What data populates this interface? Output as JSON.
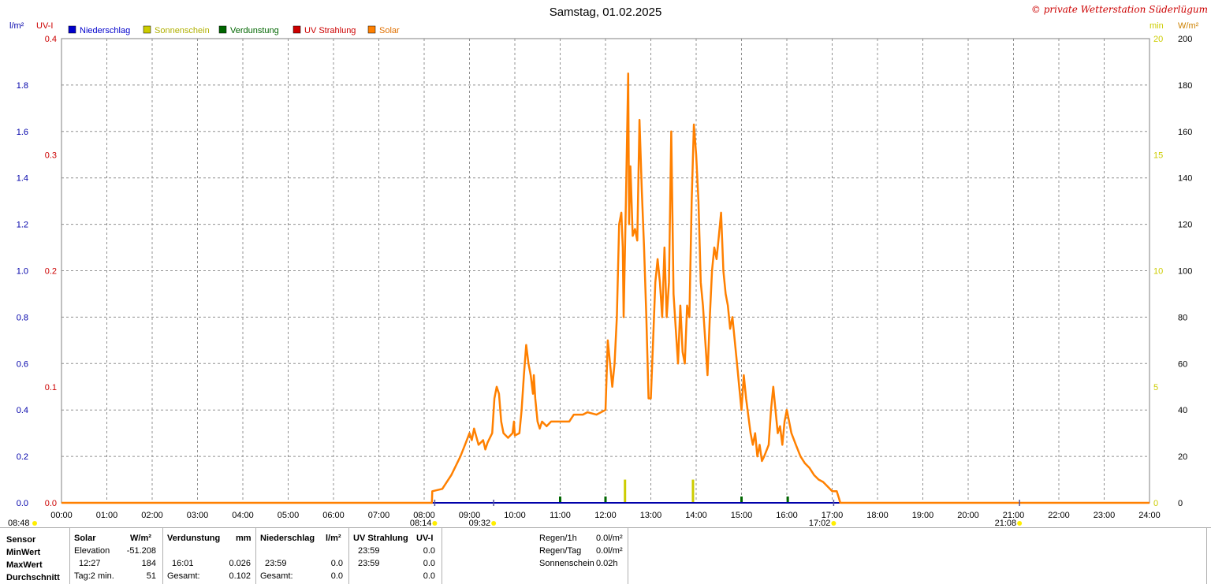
{
  "title": "Samstag, 01.02.2025",
  "brand": "© private Wetterstation Süderlügum",
  "colors": {
    "niederschlag": "#0000cc",
    "sonnenschein": "#cccc00",
    "verdunstung": "#006600",
    "uv": "#cc0000",
    "solar": "#ff8000"
  },
  "axes": {
    "left1_unit": "l/m²",
    "left2_unit": "UV-I",
    "right1_unit": "min",
    "right2_unit": "W/m²",
    "left1_ticks": [
      "0.0",
      "0.2",
      "0.4",
      "0.6",
      "0.8",
      "1.0",
      "1.2",
      "1.4",
      "1.6",
      "1.8"
    ],
    "left2_ticks": [
      "0.0",
      "0.1",
      "0.2",
      "0.3",
      "0.4"
    ],
    "right1_ticks": [
      "0",
      "5",
      "10",
      "15",
      "20"
    ],
    "right2_ticks": [
      "0",
      "20",
      "40",
      "60",
      "80",
      "100",
      "120",
      "140",
      "160",
      "180",
      "200"
    ],
    "x_ticks": [
      "00:00",
      "01:00",
      "02:00",
      "03:00",
      "04:00",
      "05:00",
      "06:00",
      "07:00",
      "08:00",
      "09:00",
      "10:00",
      "11:00",
      "12:00",
      "13:00",
      "14:00",
      "15:00",
      "16:00",
      "17:00",
      "18:00",
      "19:00",
      "20:00",
      "21:00",
      "22:00",
      "23:00",
      "24:00"
    ]
  },
  "legend": [
    {
      "label": "Niederschlag",
      "color": "#0000cc"
    },
    {
      "label": "Sonnenschein",
      "color": "#cccc00"
    },
    {
      "label": "Verdunstung",
      "color": "#006600"
    },
    {
      "label": "UV Strahlung",
      "color": "#cc0000"
    },
    {
      "label": "Solar",
      "color": "#ff8000"
    }
  ],
  "events": [
    {
      "label": "08:48",
      "time": 8.8,
      "row": "left"
    },
    {
      "label": "08:14",
      "time": 8.233,
      "row": "top"
    },
    {
      "label": "09:32",
      "time": 9.533,
      "row": "top"
    },
    {
      "label": "17:02",
      "time": 17.033,
      "row": "top"
    },
    {
      "label": "21:08",
      "time": 21.133,
      "row": "top"
    }
  ],
  "chart_data": {
    "type": "line",
    "title": "Samstag, 01.02.2025",
    "xlim": [
      0,
      24
    ],
    "ylim_solar": [
      0,
      200
    ],
    "ylim_rain": [
      0,
      2.0
    ],
    "ylim_uv": [
      0,
      0.4
    ],
    "ylim_sun_min": [
      0,
      20
    ],
    "grid": true,
    "legend_position": "top-left",
    "series": [
      {
        "name": "Solar",
        "unit": "W/m²",
        "color": "#ff8000",
        "points": [
          [
            0,
            0
          ],
          [
            8.17,
            0
          ],
          [
            8.18,
            5
          ],
          [
            8.4,
            6
          ],
          [
            8.6,
            12
          ],
          [
            8.8,
            20
          ],
          [
            8.9,
            25
          ],
          [
            9.0,
            30
          ],
          [
            9.05,
            27
          ],
          [
            9.1,
            32
          ],
          [
            9.2,
            25
          ],
          [
            9.3,
            27
          ],
          [
            9.35,
            23
          ],
          [
            9.4,
            26
          ],
          [
            9.5,
            30
          ],
          [
            9.55,
            45
          ],
          [
            9.6,
            50
          ],
          [
            9.65,
            47
          ],
          [
            9.7,
            35
          ],
          [
            9.75,
            30
          ],
          [
            9.85,
            28
          ],
          [
            9.95,
            30
          ],
          [
            9.98,
            35
          ],
          [
            10.0,
            29
          ],
          [
            10.1,
            30
          ],
          [
            10.15,
            40
          ],
          [
            10.2,
            55
          ],
          [
            10.25,
            68
          ],
          [
            10.3,
            60
          ],
          [
            10.35,
            55
          ],
          [
            10.4,
            47
          ],
          [
            10.42,
            55
          ],
          [
            10.45,
            45
          ],
          [
            10.5,
            35
          ],
          [
            10.55,
            32
          ],
          [
            10.6,
            35
          ],
          [
            10.7,
            33
          ],
          [
            10.8,
            35
          ],
          [
            11.0,
            35
          ],
          [
            11.2,
            35
          ],
          [
            11.3,
            38
          ],
          [
            11.5,
            38
          ],
          [
            11.6,
            39
          ],
          [
            11.8,
            38
          ],
          [
            12.0,
            40
          ],
          [
            12.05,
            70
          ],
          [
            12.1,
            60
          ],
          [
            12.15,
            50
          ],
          [
            12.2,
            60
          ],
          [
            12.25,
            80
          ],
          [
            12.3,
            120
          ],
          [
            12.35,
            125
          ],
          [
            12.38,
            110
          ],
          [
            12.4,
            80
          ],
          [
            12.45,
            130
          ],
          [
            12.5,
            185
          ],
          [
            12.52,
            120
          ],
          [
            12.55,
            145
          ],
          [
            12.6,
            115
          ],
          [
            12.65,
            118
          ],
          [
            12.7,
            113
          ],
          [
            12.75,
            165
          ],
          [
            12.8,
            135
          ],
          [
            12.85,
            110
          ],
          [
            12.9,
            80
          ],
          [
            12.95,
            45
          ],
          [
            13.0,
            45
          ],
          [
            13.05,
            70
          ],
          [
            13.1,
            95
          ],
          [
            13.15,
            105
          ],
          [
            13.2,
            95
          ],
          [
            13.25,
            80
          ],
          [
            13.3,
            110
          ],
          [
            13.35,
            80
          ],
          [
            13.4,
            95
          ],
          [
            13.45,
            160
          ],
          [
            13.5,
            90
          ],
          [
            13.55,
            75
          ],
          [
            13.6,
            60
          ],
          [
            13.65,
            85
          ],
          [
            13.7,
            65
          ],
          [
            13.75,
            60
          ],
          [
            13.8,
            85
          ],
          [
            13.85,
            80
          ],
          [
            13.9,
            130
          ],
          [
            13.95,
            163
          ],
          [
            14.0,
            150
          ],
          [
            14.05,
            130
          ],
          [
            14.1,
            95
          ],
          [
            14.15,
            85
          ],
          [
            14.2,
            70
          ],
          [
            14.25,
            55
          ],
          [
            14.3,
            80
          ],
          [
            14.35,
            100
          ],
          [
            14.4,
            110
          ],
          [
            14.45,
            105
          ],
          [
            14.5,
            115
          ],
          [
            14.55,
            125
          ],
          [
            14.6,
            100
          ],
          [
            14.65,
            90
          ],
          [
            14.7,
            85
          ],
          [
            14.75,
            75
          ],
          [
            14.8,
            80
          ],
          [
            14.85,
            70
          ],
          [
            14.9,
            60
          ],
          [
            14.95,
            50
          ],
          [
            15.0,
            40
          ],
          [
            15.05,
            55
          ],
          [
            15.1,
            45
          ],
          [
            15.2,
            30
          ],
          [
            15.25,
            25
          ],
          [
            15.3,
            30
          ],
          [
            15.35,
            20
          ],
          [
            15.4,
            25
          ],
          [
            15.45,
            18
          ],
          [
            15.5,
            20
          ],
          [
            15.6,
            25
          ],
          [
            15.65,
            40
          ],
          [
            15.7,
            50
          ],
          [
            15.75,
            40
          ],
          [
            15.8,
            30
          ],
          [
            15.85,
            33
          ],
          [
            15.9,
            25
          ],
          [
            15.95,
            35
          ],
          [
            16.0,
            40
          ],
          [
            16.05,
            35
          ],
          [
            16.1,
            30
          ],
          [
            16.2,
            25
          ],
          [
            16.3,
            20
          ],
          [
            16.4,
            17
          ],
          [
            16.5,
            15
          ],
          [
            16.6,
            12
          ],
          [
            16.7,
            10
          ],
          [
            16.8,
            9
          ],
          [
            16.9,
            7
          ],
          [
            17.0,
            5
          ],
          [
            17.1,
            5
          ],
          [
            17.15,
            2
          ],
          [
            17.18,
            0
          ],
          [
            24,
            0
          ]
        ]
      },
      {
        "name": "Sonnenschein",
        "unit": "min",
        "color": "#cccc00",
        "bars": [
          [
            12.43,
            1.0
          ],
          [
            13.93,
            1.0
          ]
        ]
      },
      {
        "name": "Verdunstung",
        "unit": "mm",
        "color": "#006600",
        "bars": [
          [
            11.0,
            0.003
          ],
          [
            12.0,
            0.003
          ],
          [
            15.0,
            0.002
          ],
          [
            16.02,
            0.003
          ]
        ]
      },
      {
        "name": "Niederschlag",
        "unit": "l/m²",
        "color": "#0000cc",
        "values_all_zero": true
      },
      {
        "name": "UV Strahlung",
        "unit": "UV-I",
        "color": "#cc0000",
        "values_all_zero": true
      }
    ]
  },
  "stats": {
    "row_labels": [
      "Sensor",
      "MinWert",
      "MaxWert",
      "Durchschnitt"
    ],
    "solar": {
      "header": "Solar",
      "unit": "W/m²",
      "min_label": "Elevation",
      "min_value": "-51.208",
      "max_time": "12:27",
      "max_value": "184",
      "avg_label": "Tag:2 min.",
      "avg_value": "51"
    },
    "verdunstung": {
      "header": "Verdunstung",
      "unit": "mm",
      "max_time": "16:01",
      "max_value": "0.026",
      "total_label": "Gesamt:",
      "total_value": "0.102"
    },
    "niederschlag": {
      "header": "Niederschlag",
      "unit": "l/m²",
      "max_time": "23:59",
      "max_value": "0.0",
      "total_label": "Gesamt:",
      "total_value": "0.0"
    },
    "uv": {
      "header": "UV Strahlung",
      "unit": "UV-I",
      "min_time": "23:59",
      "min_value": "0.0",
      "max_time": "23:59",
      "max_value": "0.0",
      "avg_value": "0.0"
    },
    "summary": [
      {
        "label": "Regen/1h",
        "value": "0.0l/m²"
      },
      {
        "label": "Regen/Tag",
        "value": "0.0l/m²"
      },
      {
        "label": "Sonnenschein",
        "value": "0.02h"
      }
    ]
  }
}
